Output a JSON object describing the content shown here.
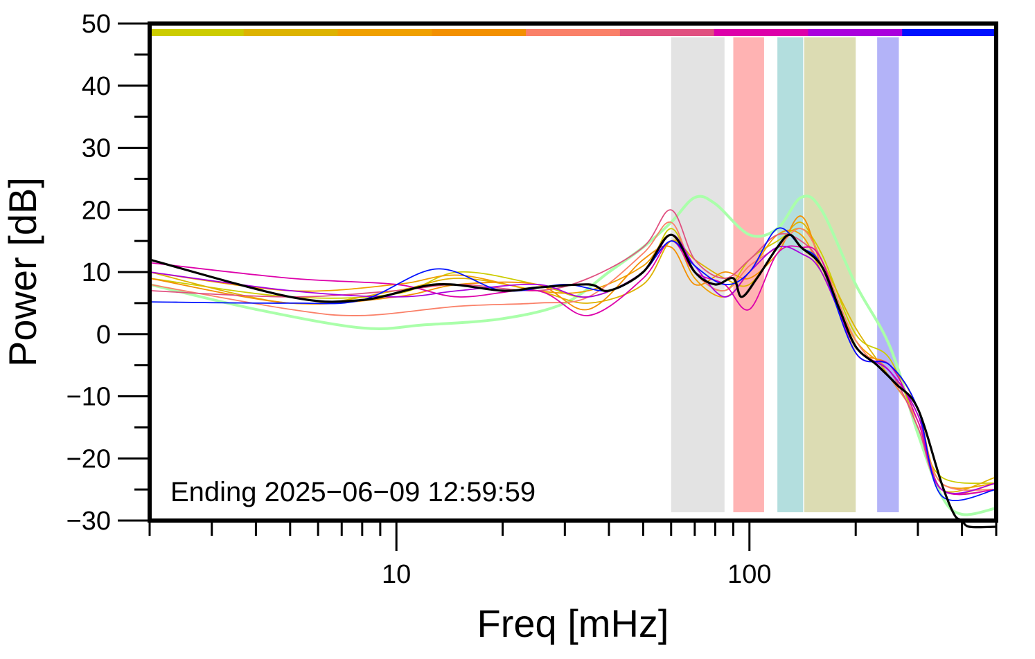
{
  "chart_data": {
    "type": "line",
    "title": "",
    "xlabel": "Freq [mHz]",
    "ylabel": "Power [dB]",
    "x_scale": "log",
    "xlim": [
      2,
      500
    ],
    "ylim": [
      -30,
      50
    ],
    "grid": false,
    "x_tick_labels": [
      {
        "x": 10,
        "label": "10"
      },
      {
        "x": 100,
        "label": "100"
      }
    ],
    "x_minor_ticks": [
      3,
      4,
      5,
      6,
      7,
      8,
      9,
      20,
      30,
      40,
      50,
      60,
      70,
      80,
      90,
      200,
      300,
      400,
      500
    ],
    "y_ticks": [
      {
        "y": 50,
        "label": "50"
      },
      {
        "y": 40,
        "label": "40"
      },
      {
        "y": 30,
        "label": "30"
      },
      {
        "y": 20,
        "label": "20"
      },
      {
        "y": 10,
        "label": "10"
      },
      {
        "y": 0,
        "label": "0"
      },
      {
        "y": -10,
        "label": "−10"
      },
      {
        "y": -20,
        "label": "−20"
      },
      {
        "y": -30,
        "label": "−30"
      }
    ],
    "annotation": "Ending 2025−06−09 12:59:59",
    "top_color_bar": [
      "#cccc00",
      "#ddb300",
      "#f0a000",
      "#f39000",
      "#fa8068",
      "#e05080",
      "#dd00aa",
      "#aa00dd",
      "#0011ff"
    ],
    "bands": [
      {
        "x0": 60,
        "x1": 85,
        "color": "#e3e3e3"
      },
      {
        "x0": 90,
        "x1": 110,
        "color": "#ffb3b3"
      },
      {
        "x0": 120,
        "x1": 142,
        "color": "#b3dede"
      },
      {
        "x0": 143,
        "x1": 200,
        "color": "#dcdcb3"
      },
      {
        "x0": 230,
        "x1": 265,
        "color": "#b3b3f8"
      }
    ],
    "series": [
      {
        "color": "#aaffaa",
        "width": 4,
        "points": [
          [
            2,
            8
          ],
          [
            4,
            4
          ],
          [
            8,
            1
          ],
          [
            12,
            1.5
          ],
          [
            20,
            2.5
          ],
          [
            30,
            5
          ],
          [
            40,
            10
          ],
          [
            50,
            14
          ],
          [
            60,
            18
          ],
          [
            70,
            22
          ],
          [
            80,
            21
          ],
          [
            100,
            16
          ],
          [
            120,
            17
          ],
          [
            140,
            22
          ],
          [
            160,
            20
          ],
          [
            200,
            8
          ],
          [
            250,
            -2
          ],
          [
            300,
            -16
          ],
          [
            350,
            -26
          ],
          [
            400,
            -29
          ],
          [
            500,
            -28
          ]
        ]
      },
      {
        "color": "#cccc00",
        "width": 1.8,
        "points": [
          [
            2,
            9
          ],
          [
            5,
            6
          ],
          [
            10,
            6.5
          ],
          [
            15,
            10
          ],
          [
            25,
            8
          ],
          [
            35,
            6
          ],
          [
            50,
            10
          ],
          [
            60,
            17
          ],
          [
            70,
            10
          ],
          [
            85,
            7
          ],
          [
            100,
            12
          ],
          [
            120,
            15
          ],
          [
            140,
            17
          ],
          [
            160,
            13
          ],
          [
            200,
            0
          ],
          [
            250,
            -4
          ],
          [
            300,
            -15
          ],
          [
            350,
            -23
          ],
          [
            500,
            -24
          ]
        ]
      },
      {
        "color": "#ddb300",
        "width": 1.8,
        "points": [
          [
            2,
            10
          ],
          [
            5,
            5
          ],
          [
            10,
            7
          ],
          [
            15,
            9
          ],
          [
            25,
            7
          ],
          [
            35,
            5
          ],
          [
            50,
            8
          ],
          [
            60,
            15
          ],
          [
            70,
            12
          ],
          [
            85,
            9
          ],
          [
            100,
            8
          ],
          [
            120,
            14
          ],
          [
            140,
            18
          ],
          [
            160,
            12
          ],
          [
            200,
            1
          ],
          [
            250,
            -7
          ],
          [
            300,
            -14
          ],
          [
            350,
            -25
          ],
          [
            500,
            -23
          ]
        ]
      },
      {
        "color": "#f0a000",
        "width": 1.8,
        "points": [
          [
            2,
            10
          ],
          [
            5,
            7
          ],
          [
            10,
            8
          ],
          [
            15,
            9.5
          ],
          [
            25,
            7
          ],
          [
            35,
            7
          ],
          [
            50,
            11
          ],
          [
            60,
            16
          ],
          [
            70,
            9
          ],
          [
            85,
            6
          ],
          [
            100,
            10
          ],
          [
            120,
            16
          ],
          [
            140,
            16
          ],
          [
            160,
            10
          ],
          [
            200,
            -1
          ],
          [
            250,
            -6
          ],
          [
            300,
            -13
          ],
          [
            350,
            -24
          ],
          [
            500,
            -24
          ]
        ]
      },
      {
        "color": "#f39000",
        "width": 1.8,
        "points": [
          [
            2,
            9
          ],
          [
            5,
            5
          ],
          [
            10,
            6
          ],
          [
            15,
            8
          ],
          [
            25,
            8
          ],
          [
            35,
            4
          ],
          [
            50,
            12
          ],
          [
            60,
            14
          ],
          [
            70,
            8
          ],
          [
            85,
            10
          ],
          [
            100,
            9
          ],
          [
            120,
            13
          ],
          [
            140,
            19
          ],
          [
            160,
            11
          ],
          [
            200,
            -2
          ],
          [
            250,
            -5
          ],
          [
            300,
            -12
          ],
          [
            350,
            -25
          ],
          [
            500,
            -24
          ]
        ]
      },
      {
        "color": "#fa8068",
        "width": 1.8,
        "points": [
          [
            2,
            8
          ],
          [
            5,
            4
          ],
          [
            8,
            3
          ],
          [
            15,
            4.5
          ],
          [
            25,
            5
          ],
          [
            35,
            6
          ],
          [
            50,
            13
          ],
          [
            60,
            18
          ],
          [
            70,
            10
          ],
          [
            85,
            7
          ],
          [
            100,
            11
          ],
          [
            120,
            14
          ],
          [
            140,
            17
          ],
          [
            160,
            12
          ],
          [
            200,
            -1
          ],
          [
            250,
            -7
          ],
          [
            300,
            -14
          ],
          [
            350,
            -24
          ],
          [
            500,
            -25
          ]
        ]
      },
      {
        "color": "#e05080",
        "width": 1.8,
        "points": [
          [
            2,
            7
          ],
          [
            5,
            6
          ],
          [
            10,
            7
          ],
          [
            15,
            8
          ],
          [
            25,
            7
          ],
          [
            35,
            9
          ],
          [
            50,
            14
          ],
          [
            60,
            20
          ],
          [
            70,
            12
          ],
          [
            85,
            9
          ],
          [
            100,
            12
          ],
          [
            120,
            16
          ],
          [
            140,
            15
          ],
          [
            160,
            11
          ],
          [
            200,
            -2
          ],
          [
            250,
            -6
          ],
          [
            300,
            -15
          ],
          [
            350,
            -25
          ],
          [
            500,
            -25
          ]
        ]
      },
      {
        "color": "#dd00aa",
        "width": 1.8,
        "points": [
          [
            2,
            11.5
          ],
          [
            5,
            9
          ],
          [
            10,
            8
          ],
          [
            15,
            6
          ],
          [
            25,
            7
          ],
          [
            35,
            3
          ],
          [
            50,
            9
          ],
          [
            60,
            15
          ],
          [
            70,
            10
          ],
          [
            85,
            8
          ],
          [
            100,
            4
          ],
          [
            120,
            13
          ],
          [
            140,
            14
          ],
          [
            160,
            12
          ],
          [
            200,
            -3
          ],
          [
            250,
            -5
          ],
          [
            300,
            -14
          ],
          [
            350,
            -25
          ],
          [
            500,
            -25
          ]
        ]
      },
      {
        "color": "#aa00dd",
        "width": 1.8,
        "points": [
          [
            2,
            10
          ],
          [
            5,
            7
          ],
          [
            10,
            6
          ],
          [
            15,
            7
          ],
          [
            25,
            8
          ],
          [
            35,
            6
          ],
          [
            50,
            10
          ],
          [
            60,
            16
          ],
          [
            70,
            11
          ],
          [
            85,
            6
          ],
          [
            100,
            10
          ],
          [
            120,
            14
          ],
          [
            140,
            13
          ],
          [
            160,
            10
          ],
          [
            200,
            -2
          ],
          [
            250,
            -6
          ],
          [
            300,
            -13
          ],
          [
            350,
            -25
          ],
          [
            500,
            -24
          ]
        ]
      },
      {
        "color": "#0011ff",
        "width": 1.8,
        "points": [
          [
            2,
            5.2
          ],
          [
            5,
            5
          ],
          [
            8,
            5.5
          ],
          [
            13,
            10.5
          ],
          [
            20,
            7
          ],
          [
            30,
            8
          ],
          [
            40,
            7
          ],
          [
            50,
            10
          ],
          [
            60,
            15
          ],
          [
            70,
            11
          ],
          [
            85,
            8
          ],
          [
            100,
            10
          ],
          [
            120,
            17
          ],
          [
            140,
            14
          ],
          [
            160,
            11
          ],
          [
            200,
            -3
          ],
          [
            250,
            -5
          ],
          [
            300,
            -12
          ],
          [
            350,
            -26
          ],
          [
            500,
            -25
          ]
        ]
      },
      {
        "color": "#000000",
        "width": 3.2,
        "points": [
          [
            2,
            12
          ],
          [
            5,
            6
          ],
          [
            8,
            5.5
          ],
          [
            13,
            8
          ],
          [
            20,
            7
          ],
          [
            25,
            7.5
          ],
          [
            35,
            8
          ],
          [
            40,
            7
          ],
          [
            50,
            10
          ],
          [
            60,
            16
          ],
          [
            70,
            10
          ],
          [
            80,
            8
          ],
          [
            90,
            9
          ],
          [
            95,
            6
          ],
          [
            105,
            9
          ],
          [
            120,
            14
          ],
          [
            130,
            16
          ],
          [
            140,
            14
          ],
          [
            160,
            11
          ],
          [
            180,
            4
          ],
          [
            200,
            -2
          ],
          [
            230,
            -5
          ],
          [
            260,
            -8
          ],
          [
            300,
            -12
          ],
          [
            350,
            -24
          ],
          [
            380,
            -29
          ],
          [
            400,
            -30
          ],
          [
            420,
            -31
          ],
          [
            500,
            -31
          ]
        ]
      }
    ]
  }
}
